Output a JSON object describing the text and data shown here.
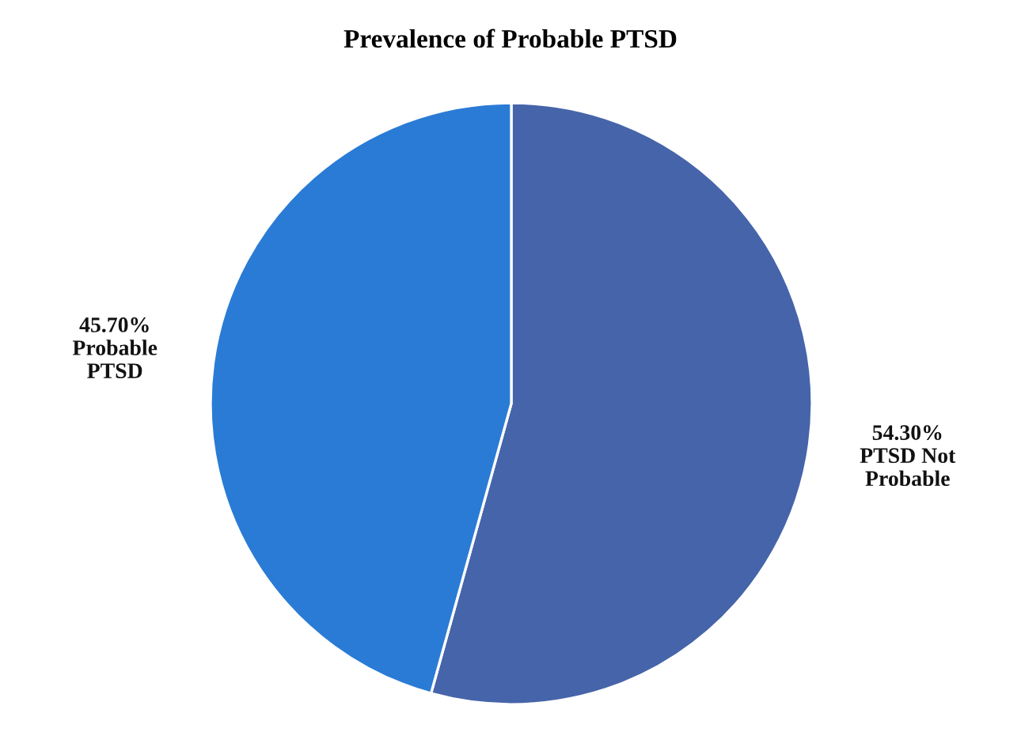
{
  "chart_data": {
    "type": "pie",
    "title": "Prevalence of Probable PTSD",
    "categories": [
      "PTSD Not Probable",
      "Probable PTSD"
    ],
    "values": [
      54.3,
      45.7
    ],
    "colors": [
      "#4664aa",
      "#2a7bd5"
    ],
    "value_labels": [
      "54.30%",
      "45.70%"
    ]
  }
}
